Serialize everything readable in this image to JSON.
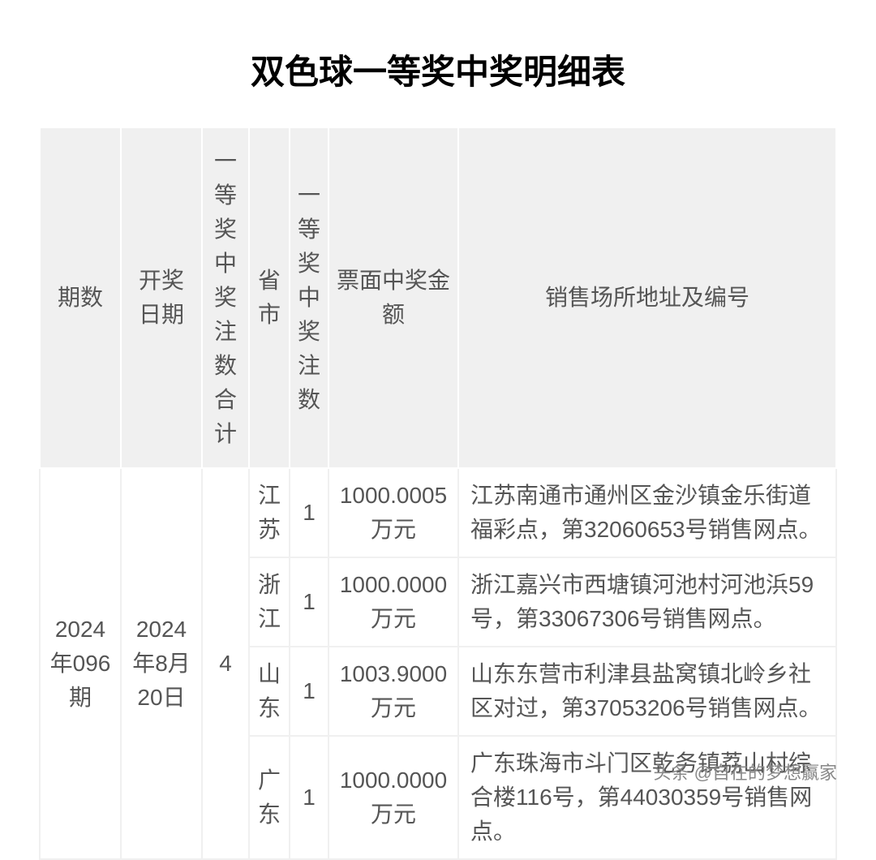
{
  "title": "双色球一等奖中奖明细表",
  "table": {
    "columns": [
      "期数",
      "开奖日期",
      "一等奖中奖注数合计",
      "省市",
      "一等奖中奖注数",
      "票面中奖金额",
      "销售场所地址及编号"
    ],
    "period": "2024年096期",
    "date": "2024年8月20日",
    "total_count": "4",
    "rows": [
      {
        "province": "江苏",
        "count": "1",
        "amount": "1000.0005万元",
        "address": "江苏南通市通州区金沙镇金乐街道福彩点，第32060653号销售网点。"
      },
      {
        "province": "浙江",
        "count": "1",
        "amount": "1000.0000万元",
        "address": "浙江嘉兴市西塘镇河池村河池浜59号，第33067306号销售网点。"
      },
      {
        "province": "山东",
        "count": "1",
        "amount": "1003.9000万元",
        "address": "山东东营市利津县盐窝镇北岭乡社区对过，第37053206号销售网点。"
      },
      {
        "province": "广东",
        "count": "1",
        "amount": "1000.0000万元",
        "address": "广东珠海市斗门区乾务镇荔山村综合楼116号，第44030359号销售网点。"
      }
    ],
    "header_bg_color": "#f0f0f0",
    "text_color": "#555555",
    "border_color": "#f0f0f0",
    "background_color": "#ffffff",
    "title_fontsize": 42,
    "cell_fontsize": 28
  },
  "watermark": "头条 @自在的梦想赢家"
}
